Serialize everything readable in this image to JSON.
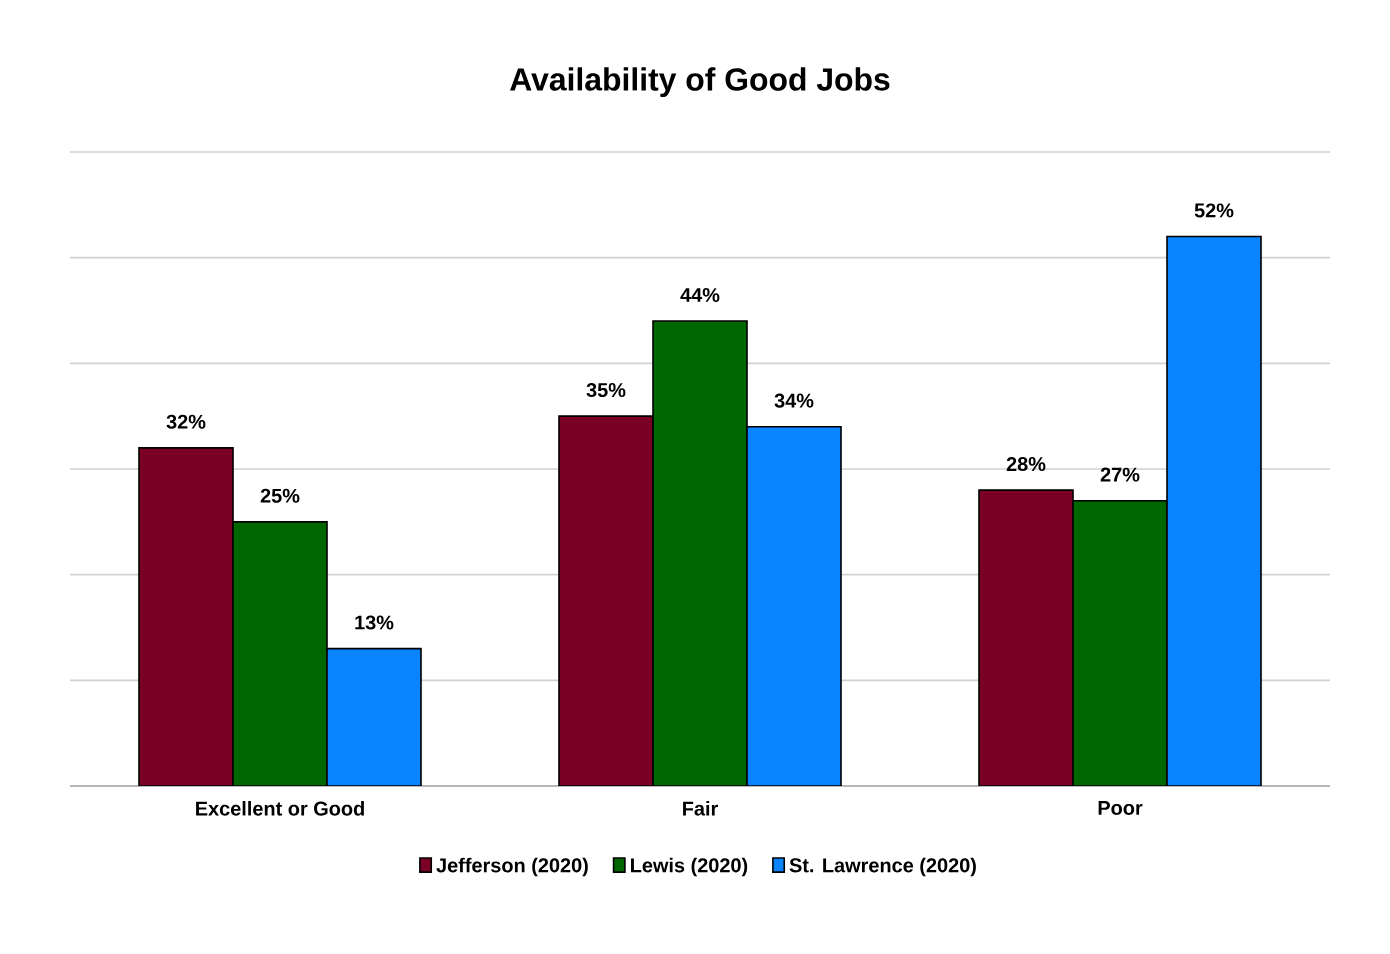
{
  "chart_data": {
    "type": "bar",
    "title": "Availability of Good Jobs",
    "categories": [
      "Excellent or Good",
      "Fair",
      "Poor"
    ],
    "series": [
      {
        "name": "Jefferson (2020)",
        "color": "#7b0025",
        "values": [
          32,
          35,
          28
        ],
        "value_labels": [
          "32%",
          "35%",
          "28%"
        ]
      },
      {
        "name": "Lewis (2020)",
        "color": "#006600",
        "values": [
          25,
          44,
          27
        ],
        "value_labels": [
          "25%",
          "44%",
          "27%"
        ]
      },
      {
        "name": "St. Lawrence (2020)",
        "color": "#0a84ff",
        "values": [
          13,
          34,
          52
        ],
        "value_labels": [
          "13%",
          "34%",
          "52%"
        ]
      }
    ],
    "ylim": [
      0,
      60
    ],
    "yticks": [
      {
        "value": 0,
        "label": null
      },
      {
        "value": 10,
        "label": null
      },
      {
        "value": 20,
        "label": null
      },
      {
        "value": 30,
        "label": null
      },
      {
        "value": 40,
        "label": null
      },
      {
        "value": 50,
        "label": null
      },
      {
        "value": 60,
        "label": null
      }
    ],
    "tick_labels": "x",
    "grid": "y",
    "legend": "bottom"
  }
}
